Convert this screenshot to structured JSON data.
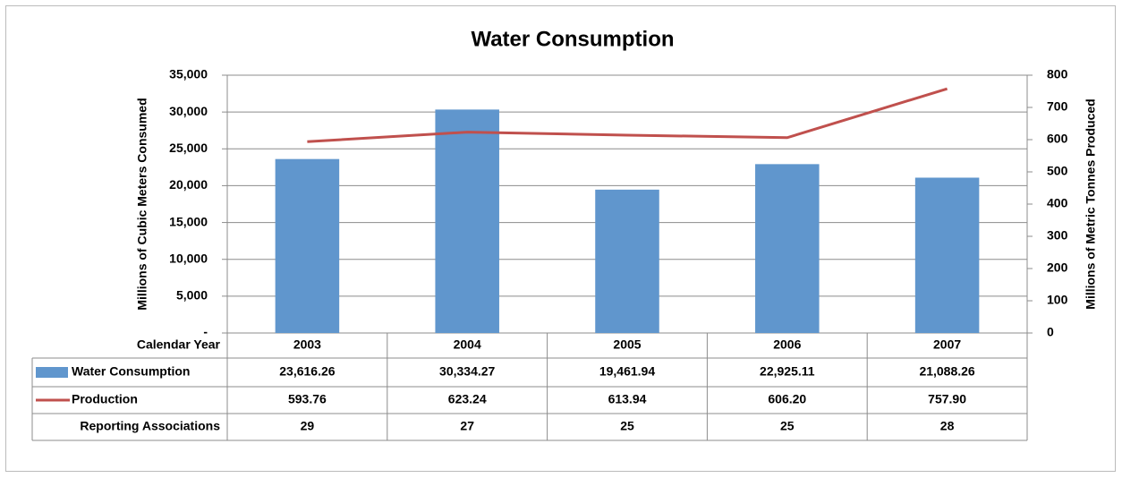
{
  "chart_data": {
    "type": "bar",
    "title": "Water Consumption",
    "ylabel": "Millions of Cubic Meters Consumed",
    "y2label": "Millions of Metric Tonnes Produced",
    "xlabel": "Calendar Year",
    "categories": [
      "2003",
      "2004",
      "2005",
      "2006",
      "2007"
    ],
    "series": [
      {
        "name": "Water Consumption",
        "type": "bar",
        "color": "#6096cd",
        "values": [
          23616.26,
          30334.27,
          19461.94,
          22925.11,
          21088.26
        ],
        "value_labels": [
          "23,616.26",
          "30,334.27",
          "19,461.94",
          "22,925.11",
          "21,088.26"
        ]
      },
      {
        "name": "Production",
        "type": "line",
        "axis": "y2",
        "color": "#c0504d",
        "values": [
          593.76,
          623.24,
          613.94,
          606.2,
          757.9
        ],
        "value_labels": [
          "593.76",
          "623.24",
          "613.94",
          "606.20",
          "757.90"
        ]
      }
    ],
    "table_rows": [
      {
        "name": "Reporting Associations",
        "values": [
          29,
          27,
          25,
          25,
          28
        ]
      }
    ],
    "ylim": [
      0,
      35000
    ],
    "yticks": [
      {
        "value": 0,
        "label": "-"
      },
      {
        "value": 5000,
        "label": "5,000"
      },
      {
        "value": 10000,
        "label": "10,000"
      },
      {
        "value": 15000,
        "label": "15,000"
      },
      {
        "value": 20000,
        "label": "20,000"
      },
      {
        "value": 25000,
        "label": "25,000"
      },
      {
        "value": 30000,
        "label": "30,000"
      },
      {
        "value": 35000,
        "label": "35,000"
      }
    ],
    "y2lim": [
      0,
      800
    ],
    "y2ticks": [
      0,
      100,
      200,
      300,
      400,
      500,
      600,
      700,
      800
    ],
    "grid": true
  }
}
